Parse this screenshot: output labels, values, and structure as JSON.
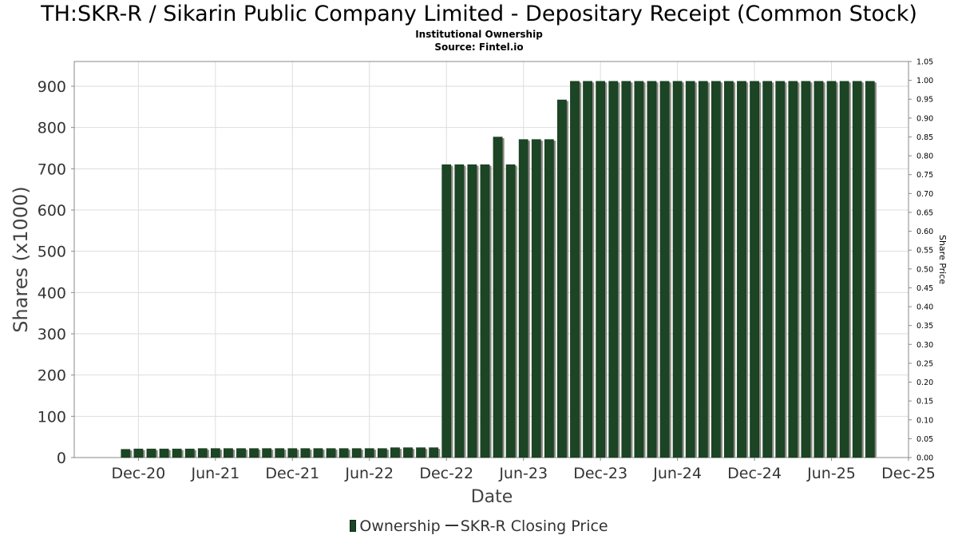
{
  "header": {
    "title": "TH:SKR-R / Sikarin Public Company Limited - Depositary Receipt (Common Stock)",
    "subtitle": "Institutional Ownership",
    "source": "Source: Fintel.io"
  },
  "legend": {
    "ownership": "Ownership",
    "price": "SKR-R Closing Price"
  },
  "colors": {
    "bar": "#1b4524",
    "bar_shadow": "#8a8a82",
    "grid": "#dddddd",
    "axis": "#888888"
  },
  "chart_data": {
    "type": "bar",
    "title": "TH:SKR-R / Sikarin Public Company Limited - Depositary Receipt (Common Stock)",
    "subtitle": "Institutional Ownership",
    "xlabel": "Date",
    "ylabel": "Shares (x1000)",
    "y2label": "Share Price",
    "xlim": [
      "2020-07-01",
      "2025-12-01"
    ],
    "x_ticks": [
      "Dec-20",
      "Jun-21",
      "Dec-21",
      "Jun-22",
      "Dec-22",
      "Jun-23",
      "Dec-23",
      "Jun-24",
      "Dec-24",
      "Jun-25",
      "Dec-25"
    ],
    "ylim": [
      0,
      960
    ],
    "y_ticks": [
      0,
      100,
      200,
      300,
      400,
      500,
      600,
      700,
      800,
      900
    ],
    "y2lim": [
      0,
      1.05
    ],
    "y2_ticks": [
      "0.00",
      "0.05",
      "0.10",
      "0.15",
      "0.20",
      "0.25",
      "0.30",
      "0.35",
      "0.40",
      "0.45",
      "0.50",
      "0.55",
      "0.60",
      "0.65",
      "0.70",
      "0.75",
      "0.80",
      "0.85",
      "0.90",
      "0.95",
      "1.00",
      "1.05"
    ],
    "grid": true,
    "legend_position": "bottom",
    "series": [
      {
        "name": "Ownership",
        "x": [
          "2020-11",
          "2020-12",
          "2021-01",
          "2021-02",
          "2021-03",
          "2021-04",
          "2021-05",
          "2021-06",
          "2021-07",
          "2021-08",
          "2021-09",
          "2021-10",
          "2021-11",
          "2021-12",
          "2022-01",
          "2022-02",
          "2022-03",
          "2022-04",
          "2022-05",
          "2022-06",
          "2022-07",
          "2022-08",
          "2022-09",
          "2022-10",
          "2022-11",
          "2022-12",
          "2023-01",
          "2023-02",
          "2023-03",
          "2023-04",
          "2023-05",
          "2023-06",
          "2023-07",
          "2023-08",
          "2023-09",
          "2023-10",
          "2023-11",
          "2023-12",
          "2024-01",
          "2024-02",
          "2024-03",
          "2024-04",
          "2024-05",
          "2024-06",
          "2024-07",
          "2024-08",
          "2024-09",
          "2024-10",
          "2024-11",
          "2024-12",
          "2025-01",
          "2025-02",
          "2025-03",
          "2025-04",
          "2025-05",
          "2025-06",
          "2025-07",
          "2025-08",
          "2025-09"
        ],
        "values": [
          20,
          21,
          21,
          21,
          21,
          21,
          22,
          22,
          22,
          22,
          22,
          22,
          22,
          22,
          22,
          22,
          22,
          22,
          22,
          22,
          22,
          24,
          24,
          24,
          24,
          710,
          710,
          710,
          710,
          777,
          710,
          771,
          771,
          771,
          867,
          912,
          912,
          912,
          912,
          912,
          912,
          912,
          912,
          912,
          912,
          912,
          912,
          912,
          912,
          912,
          912,
          912,
          912,
          912,
          912,
          912,
          912,
          912,
          912
        ]
      }
    ]
  }
}
